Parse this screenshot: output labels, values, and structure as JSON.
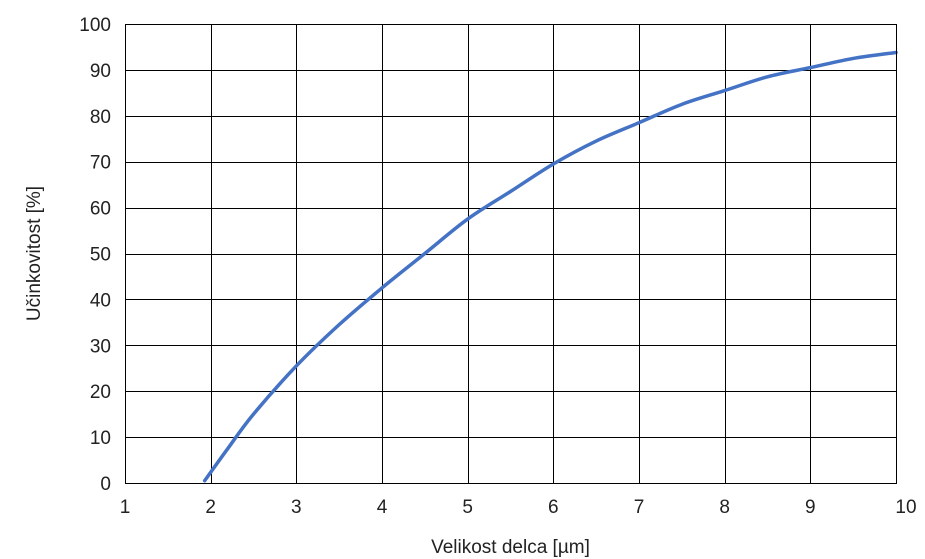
{
  "chart_data": {
    "type": "line",
    "title": "",
    "xlabel": "Velikost delca [µm]",
    "ylabel": "Učinkovitost [%]",
    "xlim": [
      1,
      10
    ],
    "ylim": [
      0,
      100
    ],
    "xticks": [
      1,
      2,
      3,
      4,
      5,
      6,
      7,
      8,
      9,
      10
    ],
    "yticks": [
      0,
      10,
      20,
      30,
      40,
      50,
      60,
      70,
      80,
      90,
      100
    ],
    "grid": true,
    "legend": "none",
    "series": [
      {
        "color": "#4472c4",
        "x": [
          1.93,
          2.2,
          2.5,
          3.0,
          3.5,
          4.0,
          4.5,
          5.0,
          5.5,
          6.0,
          6.5,
          7.0,
          7.5,
          8.0,
          8.5,
          9.0,
          9.5,
          10.0
        ],
        "y": [
          0.5,
          7.5,
          15,
          25.5,
          34.5,
          42.5,
          50,
          57.5,
          63.5,
          69.5,
          74.5,
          78.5,
          82.5,
          85.5,
          88.5,
          90.5,
          92.5,
          93.8
        ]
      }
    ]
  }
}
